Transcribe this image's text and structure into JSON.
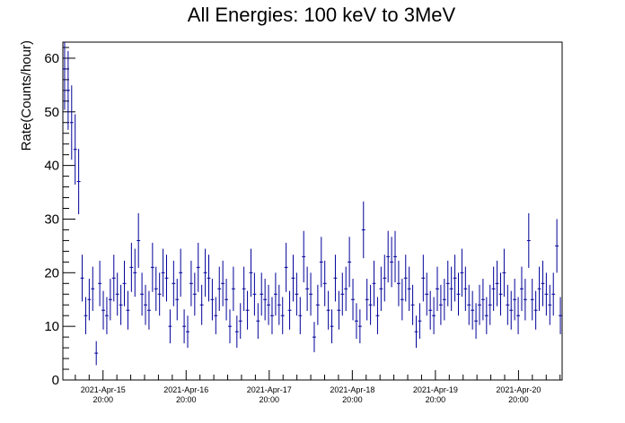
{
  "chart_data": {
    "type": "scatter",
    "title": "All Energies:  100 keV to 3MeV",
    "xlabel": "",
    "ylabel": "Rate(Counts/hour)",
    "ylim": [
      0,
      63
    ],
    "yticks": [
      0,
      10,
      20,
      30,
      40,
      50,
      60
    ],
    "xlim_hours": [
      -11.6,
      132.6
    ],
    "xticks": [
      {
        "hour": 0,
        "date": "2021-Apr-15",
        "time": "20:00"
      },
      {
        "hour": 24,
        "date": "2021-Apr-16",
        "time": "20:00"
      },
      {
        "hour": 48,
        "date": "2021-Apr-17",
        "time": "20:00"
      },
      {
        "hour": 72,
        "date": "2021-Apr-18",
        "time": "20:00"
      },
      {
        "hour": 96,
        "date": "2021-Apr-19",
        "time": "20:00"
      },
      {
        "hour": 120,
        "date": "2021-Apr-20",
        "time": "20:00"
      }
    ],
    "errors": "poisson (sqrt of counts)",
    "series": [
      {
        "color": "#000099",
        "values": [
          58,
          54,
          48,
          43,
          37,
          19,
          12,
          15,
          17,
          5,
          18,
          13,
          12,
          15,
          19,
          16,
          14,
          18,
          13,
          21,
          20,
          26,
          16,
          14,
          13,
          21,
          17,
          16,
          20,
          19,
          10,
          18,
          15,
          20,
          10,
          9,
          18,
          16,
          21,
          14,
          20,
          19,
          15,
          12,
          17,
          18,
          15,
          10,
          17,
          9,
          11,
          17,
          13,
          20,
          16,
          11,
          16,
          15,
          14,
          12,
          16,
          14,
          12,
          21,
          13,
          19,
          16,
          12,
          23,
          17,
          16,
          8,
          14,
          22,
          18,
          13,
          10,
          19,
          13,
          16,
          17,
          22,
          15,
          11,
          10,
          28,
          15,
          14,
          18,
          12,
          17,
          19,
          23,
          22,
          23,
          18,
          15,
          19,
          17,
          14,
          9,
          11,
          19,
          16,
          13,
          12,
          17,
          14,
          15,
          18,
          17,
          19,
          16,
          20,
          17,
          14,
          13,
          11,
          14,
          15,
          12,
          14,
          17,
          18,
          16,
          20,
          14,
          13,
          15,
          12,
          17,
          15,
          26,
          15,
          13,
          17,
          18,
          16,
          14,
          16,
          25,
          12
        ]
      }
    ]
  }
}
